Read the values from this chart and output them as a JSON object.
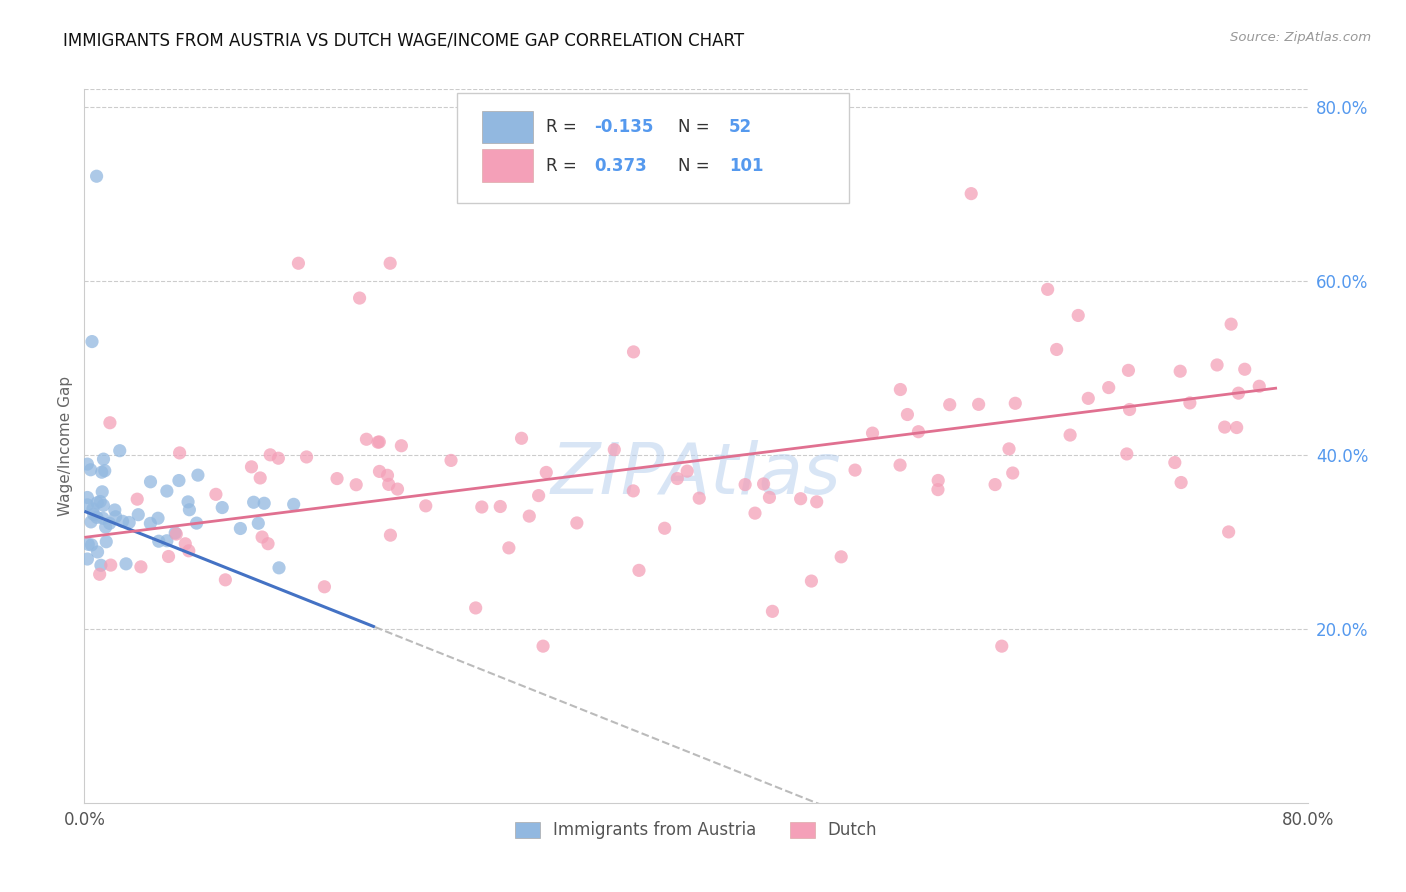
{
  "title": "IMMIGRANTS FROM AUSTRIA VS DUTCH WAGE/INCOME GAP CORRELATION CHART",
  "source_text": "Source: ZipAtlas.com",
  "ylabel": "Wage/Income Gap",
  "watermark": "ZIPAtlas",
  "xlim": [
    0.0,
    0.8
  ],
  "ylim": [
    0.0,
    0.82
  ],
  "color_blue": "#92b8e0",
  "color_pink": "#f4a0b8",
  "color_trend_blue": "#4472c4",
  "color_trend_pink": "#e07090",
  "color_trend_dash": "#bbbbbb",
  "bg_color": "#ffffff",
  "grid_color": "#cccccc",
  "watermark_color": "#b8d0ee",
  "title_color": "#111111",
  "right_axis_color": "#5599ee",
  "source_color": "#999999"
}
